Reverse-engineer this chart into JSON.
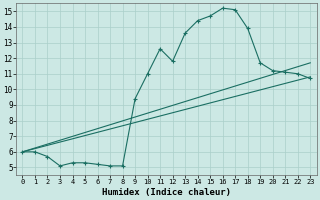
{
  "xlabel": "Humidex (Indice chaleur)",
  "ylabel": "",
  "bg_color": "#cce8e4",
  "grid_color": "#aacfca",
  "line_color": "#1a6e62",
  "xlim": [
    -0.5,
    23.5
  ],
  "ylim": [
    4.5,
    15.5
  ],
  "xticks": [
    0,
    1,
    2,
    3,
    4,
    5,
    6,
    7,
    8,
    9,
    10,
    11,
    12,
    13,
    14,
    15,
    16,
    17,
    18,
    19,
    20,
    21,
    22,
    23
  ],
  "yticks": [
    5,
    6,
    7,
    8,
    9,
    10,
    11,
    12,
    13,
    14,
    15
  ],
  "line1_x": [
    0,
    1,
    2,
    3,
    4,
    5,
    6,
    7,
    8,
    9,
    10,
    11,
    12,
    13,
    14,
    15,
    16,
    17,
    18,
    19,
    20,
    21,
    22,
    23
  ],
  "line1_y": [
    6.0,
    6.0,
    5.7,
    5.1,
    5.3,
    5.3,
    5.2,
    5.1,
    5.1,
    9.4,
    11.0,
    12.6,
    11.8,
    13.6,
    14.4,
    14.7,
    15.2,
    15.1,
    13.9,
    11.7,
    11.2,
    11.1,
    11.0,
    10.7
  ],
  "line2_x": [
    0,
    23
  ],
  "line2_y": [
    6.0,
    10.8
  ],
  "line3_x": [
    0,
    23
  ],
  "line3_y": [
    6.0,
    11.7
  ],
  "marker": "+"
}
